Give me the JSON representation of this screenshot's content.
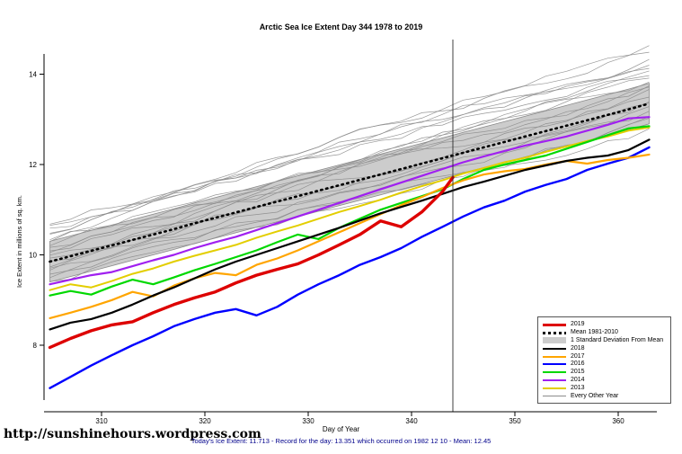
{
  "chart_data": {
    "type": "line",
    "title": "Arctic Sea Ice Extent Day 344 1978 to 2019",
    "xlabel": "Day of Year",
    "ylabel": "Ice Extent in millions of sq. km.",
    "x_ticks": [
      310,
      320,
      330,
      340,
      350,
      360
    ],
    "y_ticks": [
      8,
      10,
      12,
      14
    ],
    "xlim": [
      304,
      364
    ],
    "ylim": [
      6.8,
      14.8
    ],
    "marker_day": 344,
    "x": [
      305,
      307,
      309,
      311,
      313,
      315,
      317,
      319,
      321,
      323,
      325,
      327,
      329,
      331,
      333,
      335,
      337,
      339,
      341,
      343,
      345,
      347,
      349,
      351,
      353,
      355,
      357,
      359,
      361,
      363
    ],
    "mean": {
      "label": "Mean 1981-2010",
      "color": "#000000",
      "values": [
        9.85,
        9.97,
        10.09,
        10.21,
        10.33,
        10.45,
        10.57,
        10.7,
        10.82,
        10.94,
        11.06,
        11.18,
        11.3,
        11.42,
        11.54,
        11.66,
        11.78,
        11.9,
        12.02,
        12.14,
        12.26,
        12.38,
        12.5,
        12.62,
        12.74,
        12.86,
        12.98,
        13.1,
        13.22,
        13.35
      ]
    },
    "band": {
      "label": "1 Standard Deviation From Mean",
      "color": "#CCCCCC",
      "sd": 0.45
    },
    "series": [
      {
        "name": "2013",
        "color": "#E3CE00",
        "width": 2,
        "values": [
          9.22,
          9.35,
          9.28,
          9.42,
          9.58,
          9.7,
          9.85,
          9.98,
          10.1,
          10.22,
          10.38,
          10.52,
          10.65,
          10.8,
          10.95,
          11.08,
          11.22,
          11.38,
          11.52,
          11.65,
          11.8,
          11.92,
          12.05,
          12.15,
          12.28,
          12.4,
          12.52,
          12.62,
          12.75,
          12.82
        ]
      },
      {
        "name": "2014",
        "color": "#A020F0",
        "width": 2.2,
        "values": [
          9.35,
          9.45,
          9.55,
          9.62,
          9.75,
          9.88,
          10.0,
          10.15,
          10.28,
          10.4,
          10.55,
          10.7,
          10.85,
          11.0,
          11.15,
          11.3,
          11.45,
          11.6,
          11.75,
          11.9,
          12.05,
          12.18,
          12.3,
          12.42,
          12.52,
          12.62,
          12.75,
          12.88,
          13.02,
          13.05
        ]
      },
      {
        "name": "2015",
        "color": "#00D800",
        "width": 2.2,
        "values": [
          9.1,
          9.2,
          9.12,
          9.3,
          9.45,
          9.35,
          9.5,
          9.66,
          9.8,
          9.95,
          10.1,
          10.28,
          10.45,
          10.35,
          10.6,
          10.8,
          11.0,
          11.15,
          11.3,
          11.45,
          11.68,
          11.88,
          12.0,
          12.1,
          12.2,
          12.35,
          12.5,
          12.65,
          12.8,
          12.85
        ]
      },
      {
        "name": "2016",
        "color": "#0000FF",
        "width": 2.4,
        "values": [
          7.05,
          7.3,
          7.55,
          7.78,
          8.0,
          8.2,
          8.42,
          8.58,
          8.72,
          8.8,
          8.66,
          8.85,
          9.12,
          9.35,
          9.55,
          9.78,
          9.95,
          10.15,
          10.4,
          10.62,
          10.85,
          11.05,
          11.2,
          11.4,
          11.55,
          11.68,
          11.88,
          12.02,
          12.15,
          12.38
        ]
      },
      {
        "name": "2017",
        "color": "#FFA500",
        "width": 2.2,
        "values": [
          8.6,
          8.72,
          8.85,
          9.0,
          9.18,
          9.08,
          9.32,
          9.48,
          9.6,
          9.55,
          9.78,
          9.92,
          10.1,
          10.3,
          10.5,
          10.7,
          10.9,
          11.1,
          11.28,
          11.48,
          11.65,
          11.78,
          11.85,
          11.9,
          12.0,
          12.08,
          12.02,
          12.1,
          12.15,
          12.22
        ]
      },
      {
        "name": "2018",
        "color": "#000000",
        "width": 2.2,
        "values": [
          8.35,
          8.5,
          8.58,
          8.72,
          8.9,
          9.1,
          9.28,
          9.48,
          9.68,
          9.85,
          10.0,
          10.15,
          10.3,
          10.45,
          10.6,
          10.76,
          10.92,
          11.06,
          11.2,
          11.35,
          11.5,
          11.62,
          11.75,
          11.88,
          11.98,
          12.08,
          12.15,
          12.2,
          12.32,
          12.55
        ]
      },
      {
        "name": "2019",
        "color": "#DD0000",
        "width": 3.4,
        "x": [
          305,
          307,
          309,
          311,
          313,
          315,
          317,
          319,
          321,
          323,
          325,
          327,
          329,
          331,
          333,
          335,
          337,
          339,
          341,
          343,
          344
        ],
        "values": [
          7.95,
          8.15,
          8.32,
          8.45,
          8.52,
          8.72,
          8.9,
          9.05,
          9.18,
          9.38,
          9.55,
          9.68,
          9.8,
          10.0,
          10.22,
          10.45,
          10.75,
          10.62,
          10.95,
          11.4,
          11.713
        ]
      }
    ],
    "other_years": {
      "label": "Every Other Year",
      "color": "#8C8C8C",
      "count": 20,
      "offset_min": -0.45,
      "offset_max": 1.05,
      "seed": 7
    }
  },
  "legend": {
    "items": [
      {
        "label": "2019",
        "color": "#DD0000",
        "type": "line-thick"
      },
      {
        "label": "Mean 1981-2010",
        "color": "#000000",
        "type": "line-dashed"
      },
      {
        "label": "1 Standard Deviation From Mean",
        "color": "#CCCCCC",
        "type": "band"
      },
      {
        "label": "2018",
        "color": "#000000",
        "type": "line"
      },
      {
        "label": "2017",
        "color": "#FFA500",
        "type": "line"
      },
      {
        "label": "2016",
        "color": "#0000FF",
        "type": "line"
      },
      {
        "label": "2015",
        "color": "#00D800",
        "type": "line"
      },
      {
        "label": "2014",
        "color": "#A020F0",
        "type": "line"
      },
      {
        "label": "2013",
        "color": "#E3CE00",
        "type": "line"
      },
      {
        "label": "Every Other Year",
        "color": "#8C8C8C",
        "type": "line-thin"
      }
    ]
  },
  "footer": {
    "note": "Today's Ice Extent: 11.713  - Record for the day: 13.351 which occurred on 1982 12 10  - Mean: 12.45"
  },
  "watermark": {
    "text": "http://sunshinehours.wordpress.com"
  }
}
